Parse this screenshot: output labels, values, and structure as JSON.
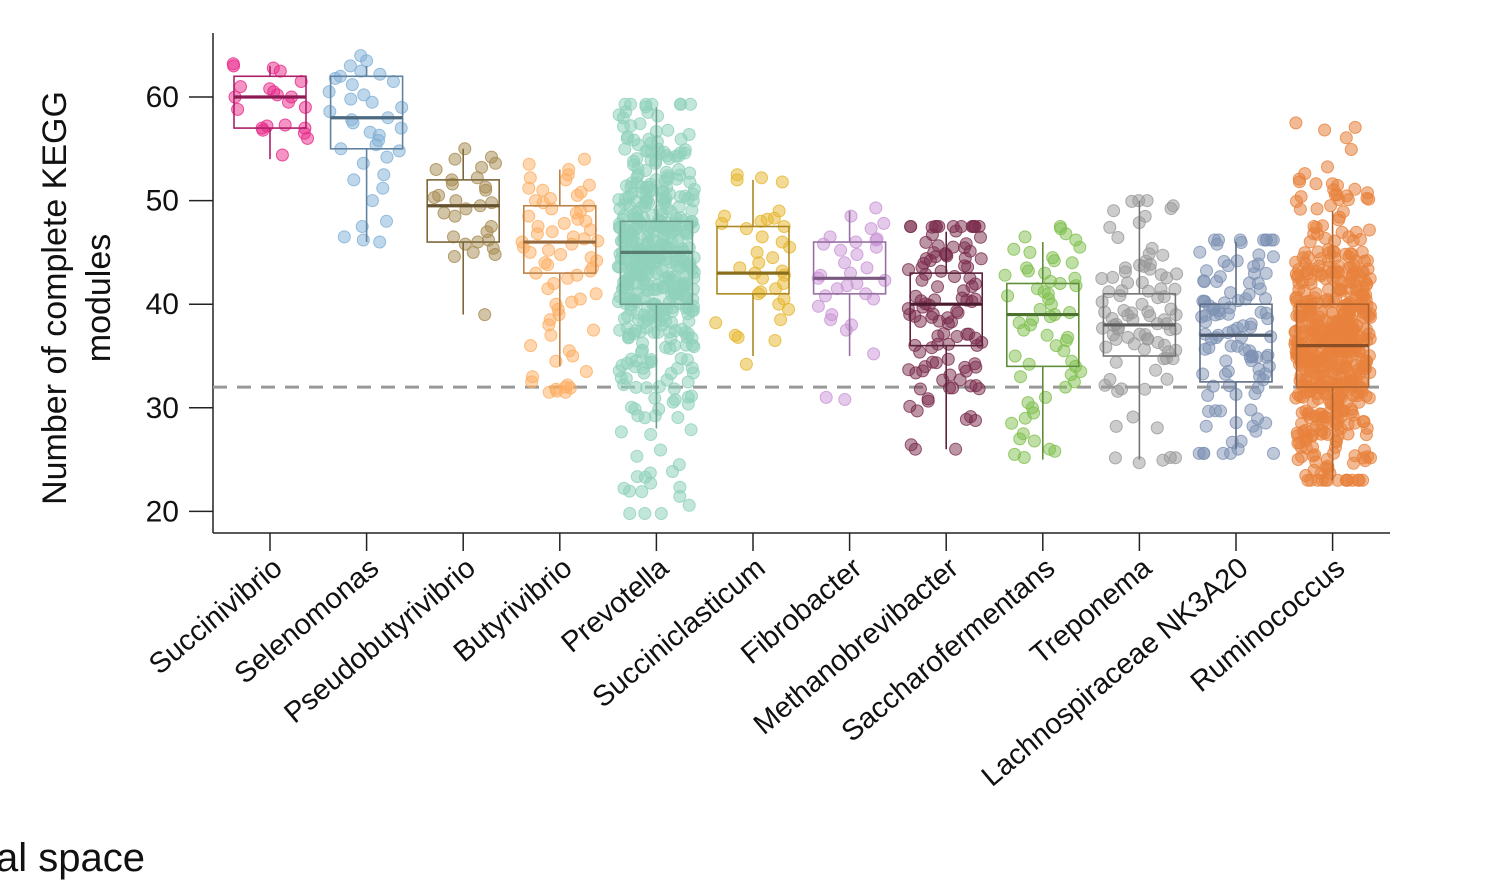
{
  "chart_data": {
    "type": "box-jitter",
    "title": "",
    "ylabel": [
      "Number of complete KEGG",
      "modules"
    ],
    "xlabel": "",
    "ylim": [
      18,
      66
    ],
    "yticks": [
      20,
      30,
      40,
      50,
      60
    ],
    "grid": false,
    "legend": "none",
    "threshold_line": {
      "value": 32,
      "style": "dashed",
      "color": "#999999"
    },
    "categories": [
      "Succinivibrio",
      "Selenomonas",
      "Pseudobutyrivibrio",
      "Butyrivibrio",
      "Prevotella",
      "Succiniclasticum",
      "Fibrobacter",
      "Methanobrevibacter",
      "Saccharofermentans",
      "Treponema",
      "Lachnospiraceae NK3A20",
      "Ruminococcus"
    ],
    "series": [
      {
        "name": "Succinivibrio",
        "color": "#e7298a",
        "box": {
          "whisker_low": 54,
          "q1": 57,
          "median": 60,
          "q3": 62,
          "whisker_high": 63
        },
        "n": 22,
        "points": [
          63,
          63.2,
          62.8,
          62.5,
          61.5,
          61,
          60.8,
          60.5,
          60.2,
          60,
          60,
          59.5,
          59,
          58.8,
          57.3,
          57.2,
          57,
          57,
          56.8,
          56.5,
          56,
          54.4
        ]
      },
      {
        "name": "Selenomonas",
        "color": "#7fafd6",
        "box": {
          "whisker_low": 46,
          "q1": 55,
          "median": 58,
          "q3": 62,
          "whisker_high": 63
        },
        "n": 36,
        "points": [
          64,
          63.5,
          63,
          62.5,
          62.2,
          62,
          61.8,
          61.5,
          61.2,
          60.5,
          60.2,
          59.8,
          59.5,
          59,
          58.6,
          58,
          57.8,
          57.5,
          57,
          56.6,
          56.3,
          55.8,
          55.4,
          55,
          54.8,
          54.2,
          53.6,
          52.5,
          52,
          51.2,
          50,
          48,
          47.5,
          46.5,
          46.2,
          46
        ]
      },
      {
        "name": "Pseudobutyrivibrio",
        "color": "#a6894f",
        "box": {
          "whisker_low": 39,
          "q1": 46,
          "median": 49.5,
          "q3": 52,
          "whisker_high": 55
        },
        "n": 30,
        "points": [
          55,
          54.2,
          54,
          53.6,
          53.2,
          53,
          52.2,
          52,
          51.6,
          51.3,
          51,
          50.5,
          50.3,
          50,
          49.8,
          49.5,
          49.2,
          48.8,
          48.5,
          47.5,
          47,
          46.5,
          46.2,
          46,
          45.8,
          45.4,
          45,
          44.8,
          44.6,
          39
        ]
      },
      {
        "name": "Butyrivibrio",
        "color": "#fdae61",
        "box": {
          "whisker_low": 34,
          "q1": 43,
          "median": 46,
          "q3": 49.5,
          "whisker_high": 53
        },
        "n": 70,
        "points": [
          54,
          53.5,
          53,
          52.5,
          52.2,
          52,
          51.5,
          51.2,
          51,
          50.8,
          50.5,
          50.2,
          50,
          49.8,
          49.5,
          49.2,
          49,
          48.8,
          48.5,
          48.2,
          48,
          47.8,
          47.5,
          47.2,
          47,
          46.8,
          46.5,
          46.3,
          46.1,
          46,
          45.8,
          45.5,
          45.2,
          45,
          44.8,
          44.5,
          44.2,
          44,
          43.8,
          43.5,
          43.2,
          43,
          42.8,
          42.5,
          42,
          41.5,
          41,
          40.5,
          40.2,
          40,
          39.5,
          39,
          38.5,
          38,
          37.5,
          37,
          36,
          35.5,
          35,
          34.5,
          33.5,
          33,
          32.5,
          32.2,
          32,
          31.9,
          31.8,
          31.6,
          31.5,
          31.5
        ]
      },
      {
        "name": "Prevotella",
        "color": "#8fd1bb",
        "box": {
          "whisker_low": 28,
          "q1": 40,
          "median": 45,
          "q3": 48,
          "whisker_high": 59
        },
        "n": 420,
        "spread": {
          "range": [
            19.8,
            59.3
          ],
          "dense_range": [
            34,
            55
          ]
        }
      },
      {
        "name": "Succiniclasticum",
        "color": "#e6b52c",
        "box": {
          "whisker_low": 35,
          "q1": 41,
          "median": 43,
          "q3": 47.5,
          "whisker_high": 52
        },
        "n": 36,
        "points": [
          52.5,
          52.2,
          52,
          51.8,
          49,
          48.5,
          48.3,
          48.2,
          48,
          47.8,
          47.5,
          47.3,
          46.5,
          46,
          45.5,
          45,
          44.5,
          44,
          43.5,
          43.2,
          43,
          42.8,
          42.5,
          42,
          41.5,
          41.2,
          41,
          40.5,
          40,
          39.5,
          38.5,
          38.2,
          37,
          36.8,
          36.5,
          34.2
        ]
      },
      {
        "name": "Fibrobacter",
        "color": "#c994d6",
        "box": {
          "whisker_low": 35,
          "q1": 41,
          "median": 42.5,
          "q3": 46,
          "whisker_high": 49
        },
        "n": 32,
        "points": [
          49.3,
          48.5,
          47.8,
          47.3,
          46.5,
          46.3,
          46.2,
          46,
          45.8,
          45.5,
          45.2,
          44.8,
          44,
          43.5,
          43,
          42.8,
          42.5,
          42.3,
          42,
          41.8,
          41.5,
          41,
          40.8,
          40.5,
          39.8,
          39,
          38.5,
          38,
          37.5,
          35.2,
          31,
          30.8
        ]
      },
      {
        "name": "Methanobrevibacter",
        "color": "#7b2d4e",
        "box": {
          "whisker_low": 26,
          "q1": 36,
          "median": 40,
          "q3": 43,
          "whisker_high": 47
        },
        "n": 110,
        "spread": {
          "range": [
            26,
            47.5
          ],
          "dense_range": [
            35,
            46
          ]
        }
      },
      {
        "name": "Saccharofermentans",
        "color": "#7fbf4d",
        "box": {
          "whisker_low": 25,
          "q1": 34,
          "median": 39,
          "q3": 42,
          "whisker_high": 46
        },
        "n": 60,
        "points": [
          47.5,
          47.3,
          46.8,
          46.5,
          46.2,
          45.5,
          45.3,
          45,
          44.5,
          44.2,
          44,
          43.5,
          43.2,
          43,
          42.8,
          42.5,
          42.2,
          42,
          41.8,
          41.5,
          41.2,
          41,
          40.8,
          40.5,
          40,
          39.5,
          39.2,
          39,
          38.8,
          38.5,
          38.2,
          38,
          37.5,
          37,
          36.8,
          36.5,
          36,
          35.5,
          35,
          34.5,
          34.2,
          34,
          33.5,
          33.2,
          33,
          32.5,
          32,
          31,
          30.5,
          30,
          29.5,
          29,
          28.5,
          27.5,
          27,
          26.8,
          26,
          25.8,
          25.5,
          25.2
        ]
      },
      {
        "name": "Treponema",
        "color": "#999999",
        "box": {
          "whisker_low": 25,
          "q1": 35,
          "median": 38,
          "q3": 41,
          "whisker_high": 50
        },
        "n": 90,
        "spread": {
          "range": [
            24.7,
            50
          ],
          "dense_range": [
            33,
            44.5
          ]
        }
      },
      {
        "name": "Lachnospiraceae NK3A20",
        "color": "#7d91b3",
        "box": {
          "whisker_low": 26,
          "q1": 32.5,
          "median": 37,
          "q3": 40,
          "whisker_high": 46
        },
        "n": 110,
        "spread": {
          "range": [
            25.6,
            46.2
          ],
          "dense_range": [
            30,
            44
          ]
        }
      },
      {
        "name": "Ruminococcus",
        "color": "#e8823c",
        "box": {
          "whisker_low": 23,
          "q1": 32,
          "median": 36,
          "q3": 40,
          "whisker_high": 49
        },
        "n": 500,
        "spread": {
          "range": [
            23,
            57.5
          ],
          "dense_range": [
            26,
            48
          ]
        }
      }
    ]
  },
  "caption": {
    "text": "al space"
  }
}
